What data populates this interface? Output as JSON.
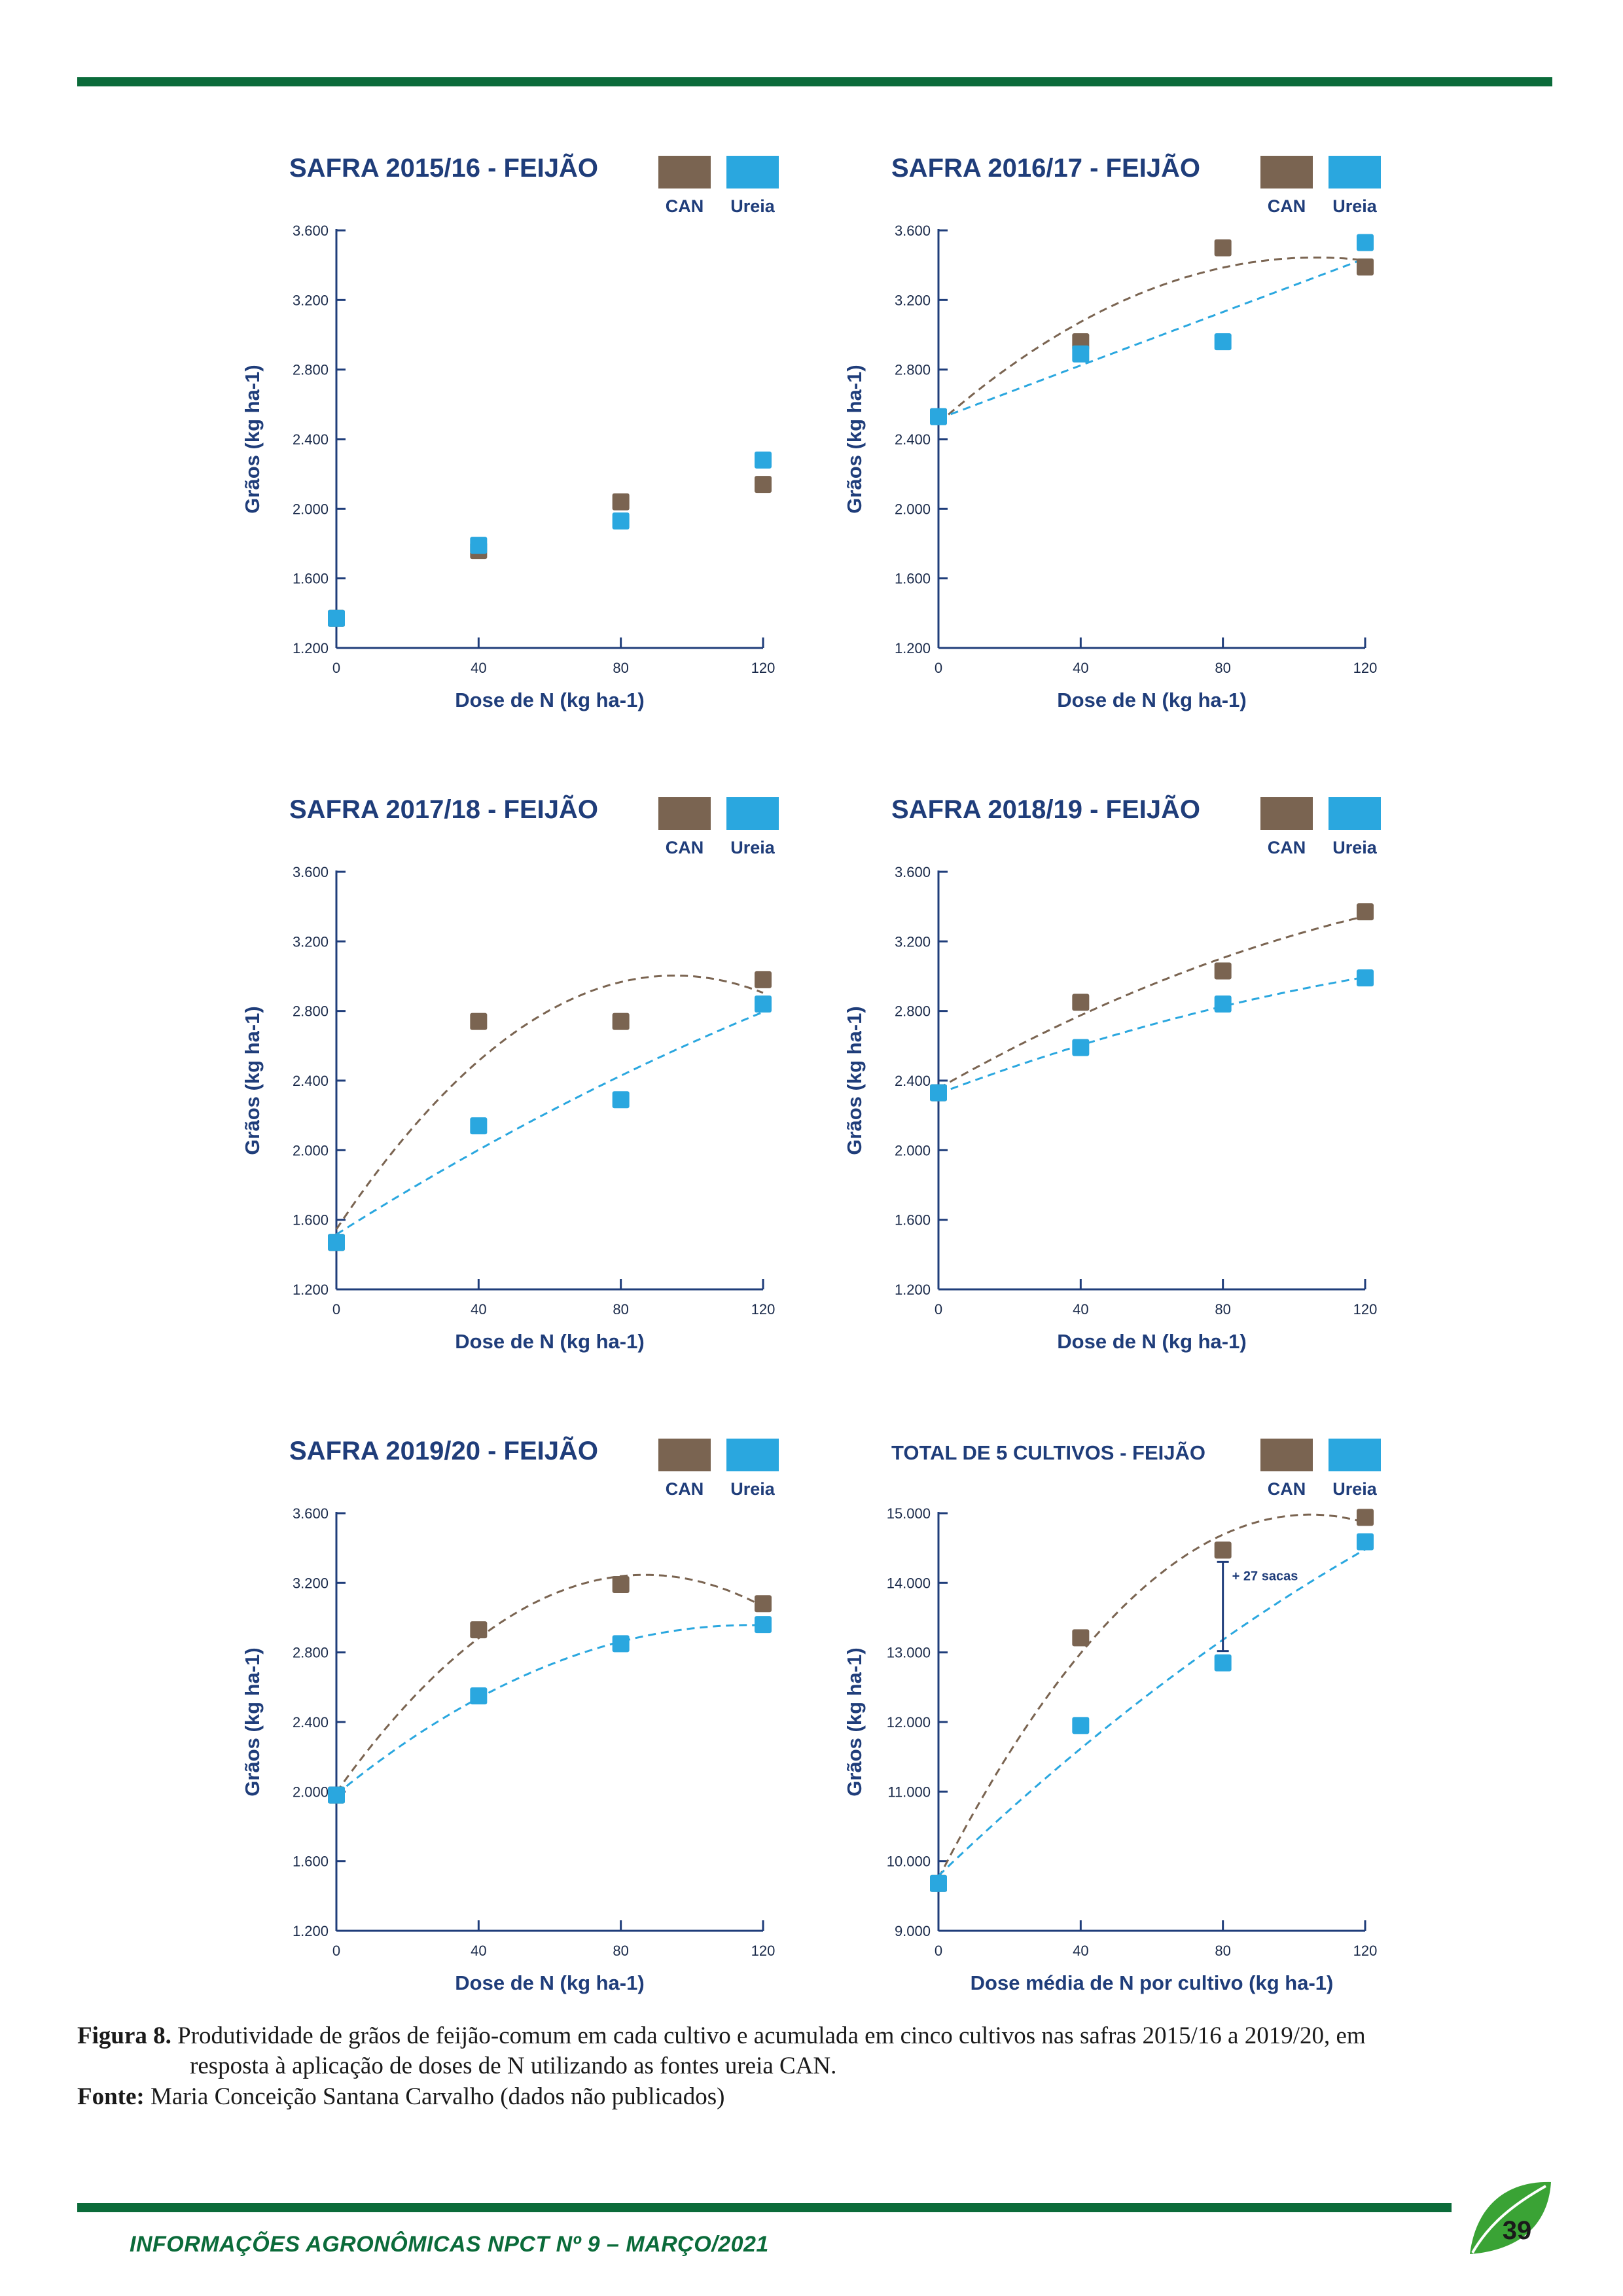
{
  "colors": {
    "can": "#7a6451",
    "ureia": "#2aa7df",
    "title": "#1f3d7a",
    "axis": "#1f3d7a",
    "brand_green": "#0b6b3a"
  },
  "legend": {
    "can": "CAN",
    "ureia": "Ureia"
  },
  "charts": [
    {
      "title": "SAFRA 2015/16 - FEIJÃO",
      "ylabel": "Grãos (kg ha-1)",
      "xlabel": "Dose de N (kg ha-1)",
      "yticks": [
        "1.200",
        "1.600",
        "2.000",
        "2.400",
        "2.800",
        "3.200",
        "3.600"
      ],
      "xticks": [
        "0",
        "40",
        "80",
        "120"
      ]
    },
    {
      "title": "SAFRA 2016/17 - FEIJÃO",
      "ylabel": "Grãos (kg ha-1)",
      "xlabel": "Dose de N (kg ha-1)",
      "yticks": [
        "1.200",
        "1.600",
        "2.000",
        "2.400",
        "2.800",
        "3.200",
        "3.600"
      ],
      "xticks": [
        "0",
        "40",
        "80",
        "120"
      ]
    },
    {
      "title": "SAFRA 2017/18 - FEIJÃO",
      "ylabel": "Grãos (kg ha-1)",
      "xlabel": "Dose de N (kg ha-1)",
      "yticks": [
        "1.200",
        "1.600",
        "2.000",
        "2.400",
        "2.800",
        "3.200",
        "3.600"
      ],
      "xticks": [
        "0",
        "40",
        "80",
        "120"
      ]
    },
    {
      "title": "SAFRA 2018/19 - FEIJÃO",
      "ylabel": "Grãos (kg ha-1)",
      "xlabel": "Dose de N (kg ha-1)",
      "yticks": [
        "1.200",
        "1.600",
        "2.000",
        "2.400",
        "2.800",
        "3.200",
        "3.600"
      ],
      "xticks": [
        "0",
        "40",
        "80",
        "120"
      ]
    },
    {
      "title": "SAFRA 2019/20 - FEIJÃO",
      "ylabel": "Grãos (kg ha-1)",
      "xlabel": "Dose de N (kg ha-1)",
      "yticks": [
        "1.200",
        "1.600",
        "2.000",
        "2.400",
        "2.800",
        "3.200",
        "3.600"
      ],
      "xticks": [
        "0",
        "40",
        "80",
        "120"
      ]
    },
    {
      "title": "TOTAL DE 5 CULTIVOS - FEIJÃO",
      "ylabel": "Grãos (kg ha-1)",
      "xlabel": "Dose média de N por cultivo (kg ha-1)",
      "yticks": [
        "9.000",
        "10.000",
        "11.000",
        "12.000",
        "13.000",
        "14.000",
        "15.000"
      ],
      "xticks": [
        "0",
        "40",
        "80",
        "120"
      ],
      "annotation": "+ 27 sacas"
    }
  ],
  "chart_data": [
    {
      "type": "scatter",
      "title": "SAFRA 2015/16 - FEIJÃO",
      "xlabel": "Dose de N (kg ha-1)",
      "ylabel": "Grãos (kg ha-1)",
      "xlim": [
        0,
        120
      ],
      "ylim": [
        1200,
        3600
      ],
      "x": [
        0,
        40,
        80,
        120
      ],
      "series": [
        {
          "name": "CAN",
          "values": [
            1370,
            1760,
            2040,
            2140
          ],
          "trend": false
        },
        {
          "name": "Ureia",
          "values": [
            1370,
            1790,
            1930,
            2280
          ],
          "trend": false
        }
      ]
    },
    {
      "type": "scatter",
      "title": "SAFRA 2016/17 - FEIJÃO",
      "xlabel": "Dose de N (kg ha-1)",
      "ylabel": "Grãos (kg ha-1)",
      "xlim": [
        0,
        120
      ],
      "ylim": [
        1200,
        3600
      ],
      "x": [
        0,
        40,
        80,
        120
      ],
      "series": [
        {
          "name": "CAN",
          "values": [
            2530,
            2960,
            3500,
            3390
          ],
          "trend": "quadratic"
        },
        {
          "name": "Ureia",
          "values": [
            2530,
            2890,
            2960,
            3530
          ],
          "trend": "linear"
        }
      ]
    },
    {
      "type": "scatter",
      "title": "SAFRA 2017/18 - FEIJÃO",
      "xlabel": "Dose de N (kg ha-1)",
      "ylabel": "Grãos (kg ha-1)",
      "xlim": [
        0,
        120
      ],
      "ylim": [
        1200,
        3600
      ],
      "x": [
        0,
        40,
        80,
        120
      ],
      "series": [
        {
          "name": "CAN",
          "values": [
            1470,
            2740,
            2740,
            2980
          ],
          "trend": "quadratic"
        },
        {
          "name": "Ureia",
          "values": [
            1470,
            2140,
            2290,
            2840
          ],
          "trend": "quadratic"
        }
      ]
    },
    {
      "type": "scatter",
      "title": "SAFRA 2018/19 - FEIJÃO",
      "xlabel": "Dose de N (kg ha-1)",
      "ylabel": "Grãos (kg ha-1)",
      "xlim": [
        0,
        120
      ],
      "ylim": [
        1200,
        3600
      ],
      "x": [
        0,
        40,
        80,
        120
      ],
      "series": [
        {
          "name": "CAN",
          "values": [
            2330,
            2850,
            3030,
            3370
          ],
          "trend": "quadratic"
        },
        {
          "name": "Ureia",
          "values": [
            2330,
            2590,
            2840,
            2990
          ],
          "trend": "quadratic"
        }
      ]
    },
    {
      "type": "scatter",
      "title": "SAFRA 2019/20 - FEIJÃO",
      "xlabel": "Dose de N (kg ha-1)",
      "ylabel": "Grãos (kg ha-1)",
      "xlim": [
        0,
        120
      ],
      "ylim": [
        1200,
        3600
      ],
      "x": [
        0,
        40,
        80,
        120
      ],
      "series": [
        {
          "name": "CAN",
          "values": [
            1980,
            2930,
            3190,
            3080
          ],
          "trend": "quadratic"
        },
        {
          "name": "Ureia",
          "values": [
            1980,
            2550,
            2850,
            2960
          ],
          "trend": "quadratic"
        }
      ]
    },
    {
      "type": "scatter",
      "title": "TOTAL DE 5 CULTIVOS - FEIJÃO",
      "xlabel": "Dose média de N por cultivo (kg ha-1)",
      "ylabel": "Grãos (kg ha-1)",
      "xlim": [
        0,
        120
      ],
      "ylim": [
        9000,
        15000
      ],
      "x": [
        0,
        40,
        80,
        120
      ],
      "series": [
        {
          "name": "CAN",
          "values": [
            9680,
            13210,
            14470,
            14940
          ],
          "trend": "quadratic"
        },
        {
          "name": "Ureia",
          "values": [
            9680,
            11950,
            12850,
            14590
          ],
          "trend": "quadratic"
        }
      ],
      "annotation": {
        "text": "+ 27 sacas",
        "x": 80
      }
    }
  ],
  "caption": {
    "label": "Figura 8.",
    "line1": "Produtividade de grãos de feijão-comum em cada cultivo e acumulada em cinco cultivos nas safras 2015/16 a 2019/20, em",
    "line2": "resposta à aplicação de doses de N utilizando as fontes ureia CAN."
  },
  "source": {
    "label": "Fonte:",
    "text": "Maria Conceição Santana Carvalho (dados não publicados)"
  },
  "footer": {
    "text": "INFORMAÇÕES AGRONÔMICAS NPCT Nº 9 – MARÇO/2021",
    "page": "39"
  }
}
